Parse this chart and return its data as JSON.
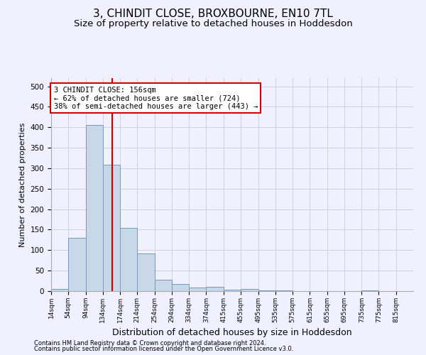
{
  "title1": "3, CHINDIT CLOSE, BROXBOURNE, EN10 7TL",
  "title2": "Size of property relative to detached houses in Hoddesdon",
  "xlabel": "Distribution of detached houses by size in Hoddesdon",
  "ylabel": "Number of detached properties",
  "footnote1": "Contains HM Land Registry data © Crown copyright and database right 2024.",
  "footnote2": "Contains public sector information licensed under the Open Government Licence v3.0.",
  "bar_edges": [
    14,
    54,
    94,
    134,
    174,
    214,
    254,
    294,
    334,
    374,
    415,
    455,
    495,
    535,
    575,
    615,
    655,
    695,
    735,
    775,
    815
  ],
  "bar_heights": [
    5,
    130,
    405,
    308,
    155,
    92,
    28,
    18,
    8,
    11,
    4,
    5,
    1,
    1,
    0,
    0,
    0,
    0,
    1,
    0,
    0
  ],
  "bar_color": "#c8d8e8",
  "bar_edgecolor": "#7799bb",
  "grid_color": "#d0d0e0",
  "property_size": 156,
  "red_line_color": "#cc0000",
  "annotation_line1": "3 CHINDIT CLOSE: 156sqm",
  "annotation_line2": "← 62% of detached houses are smaller (724)",
  "annotation_line3": "38% of semi-detached houses are larger (443) →",
  "annotation_box_color": "#ffffff",
  "annotation_box_edgecolor": "#cc0000",
  "ylim": [
    0,
    520
  ],
  "yticks": [
    0,
    50,
    100,
    150,
    200,
    250,
    300,
    350,
    400,
    450,
    500
  ],
  "background_color": "#f0f0ff",
  "title1_fontsize": 11,
  "title2_fontsize": 9.5,
  "xlabel_fontsize": 9,
  "ylabel_fontsize": 8,
  "annot_fontsize": 7.5
}
